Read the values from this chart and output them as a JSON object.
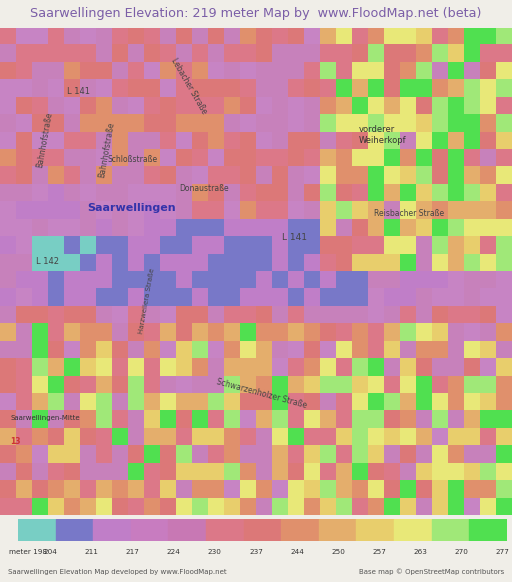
{
  "title": "Saarwellingen Elevation: 219 meter Map by  www.FloodMap.net (beta)",
  "title_color": "#7B5EA7",
  "title_bg": "#F0EEE8",
  "fig_width": 5.12,
  "fig_height": 5.82,
  "dpi": 100,
  "legend_values": [
    198,
    204,
    211,
    217,
    224,
    230,
    237,
    244,
    250,
    257,
    263,
    270,
    277
  ],
  "legend_colors": [
    "#78CEC4",
    "#7878C8",
    "#C07EC8",
    "#C87CC0",
    "#C878B4",
    "#DC7888",
    "#DC7878",
    "#E0906C",
    "#E4AE6C",
    "#E8CE6C",
    "#E8E878",
    "#A0E878",
    "#50E050"
  ],
  "bottom_text_left": "Saarwellingen Elevation Map developed by www.FloodMap.net",
  "bottom_text_right": "Base map © OpenStreetMap contributors",
  "map_bg_color": "#C8A0C8"
}
